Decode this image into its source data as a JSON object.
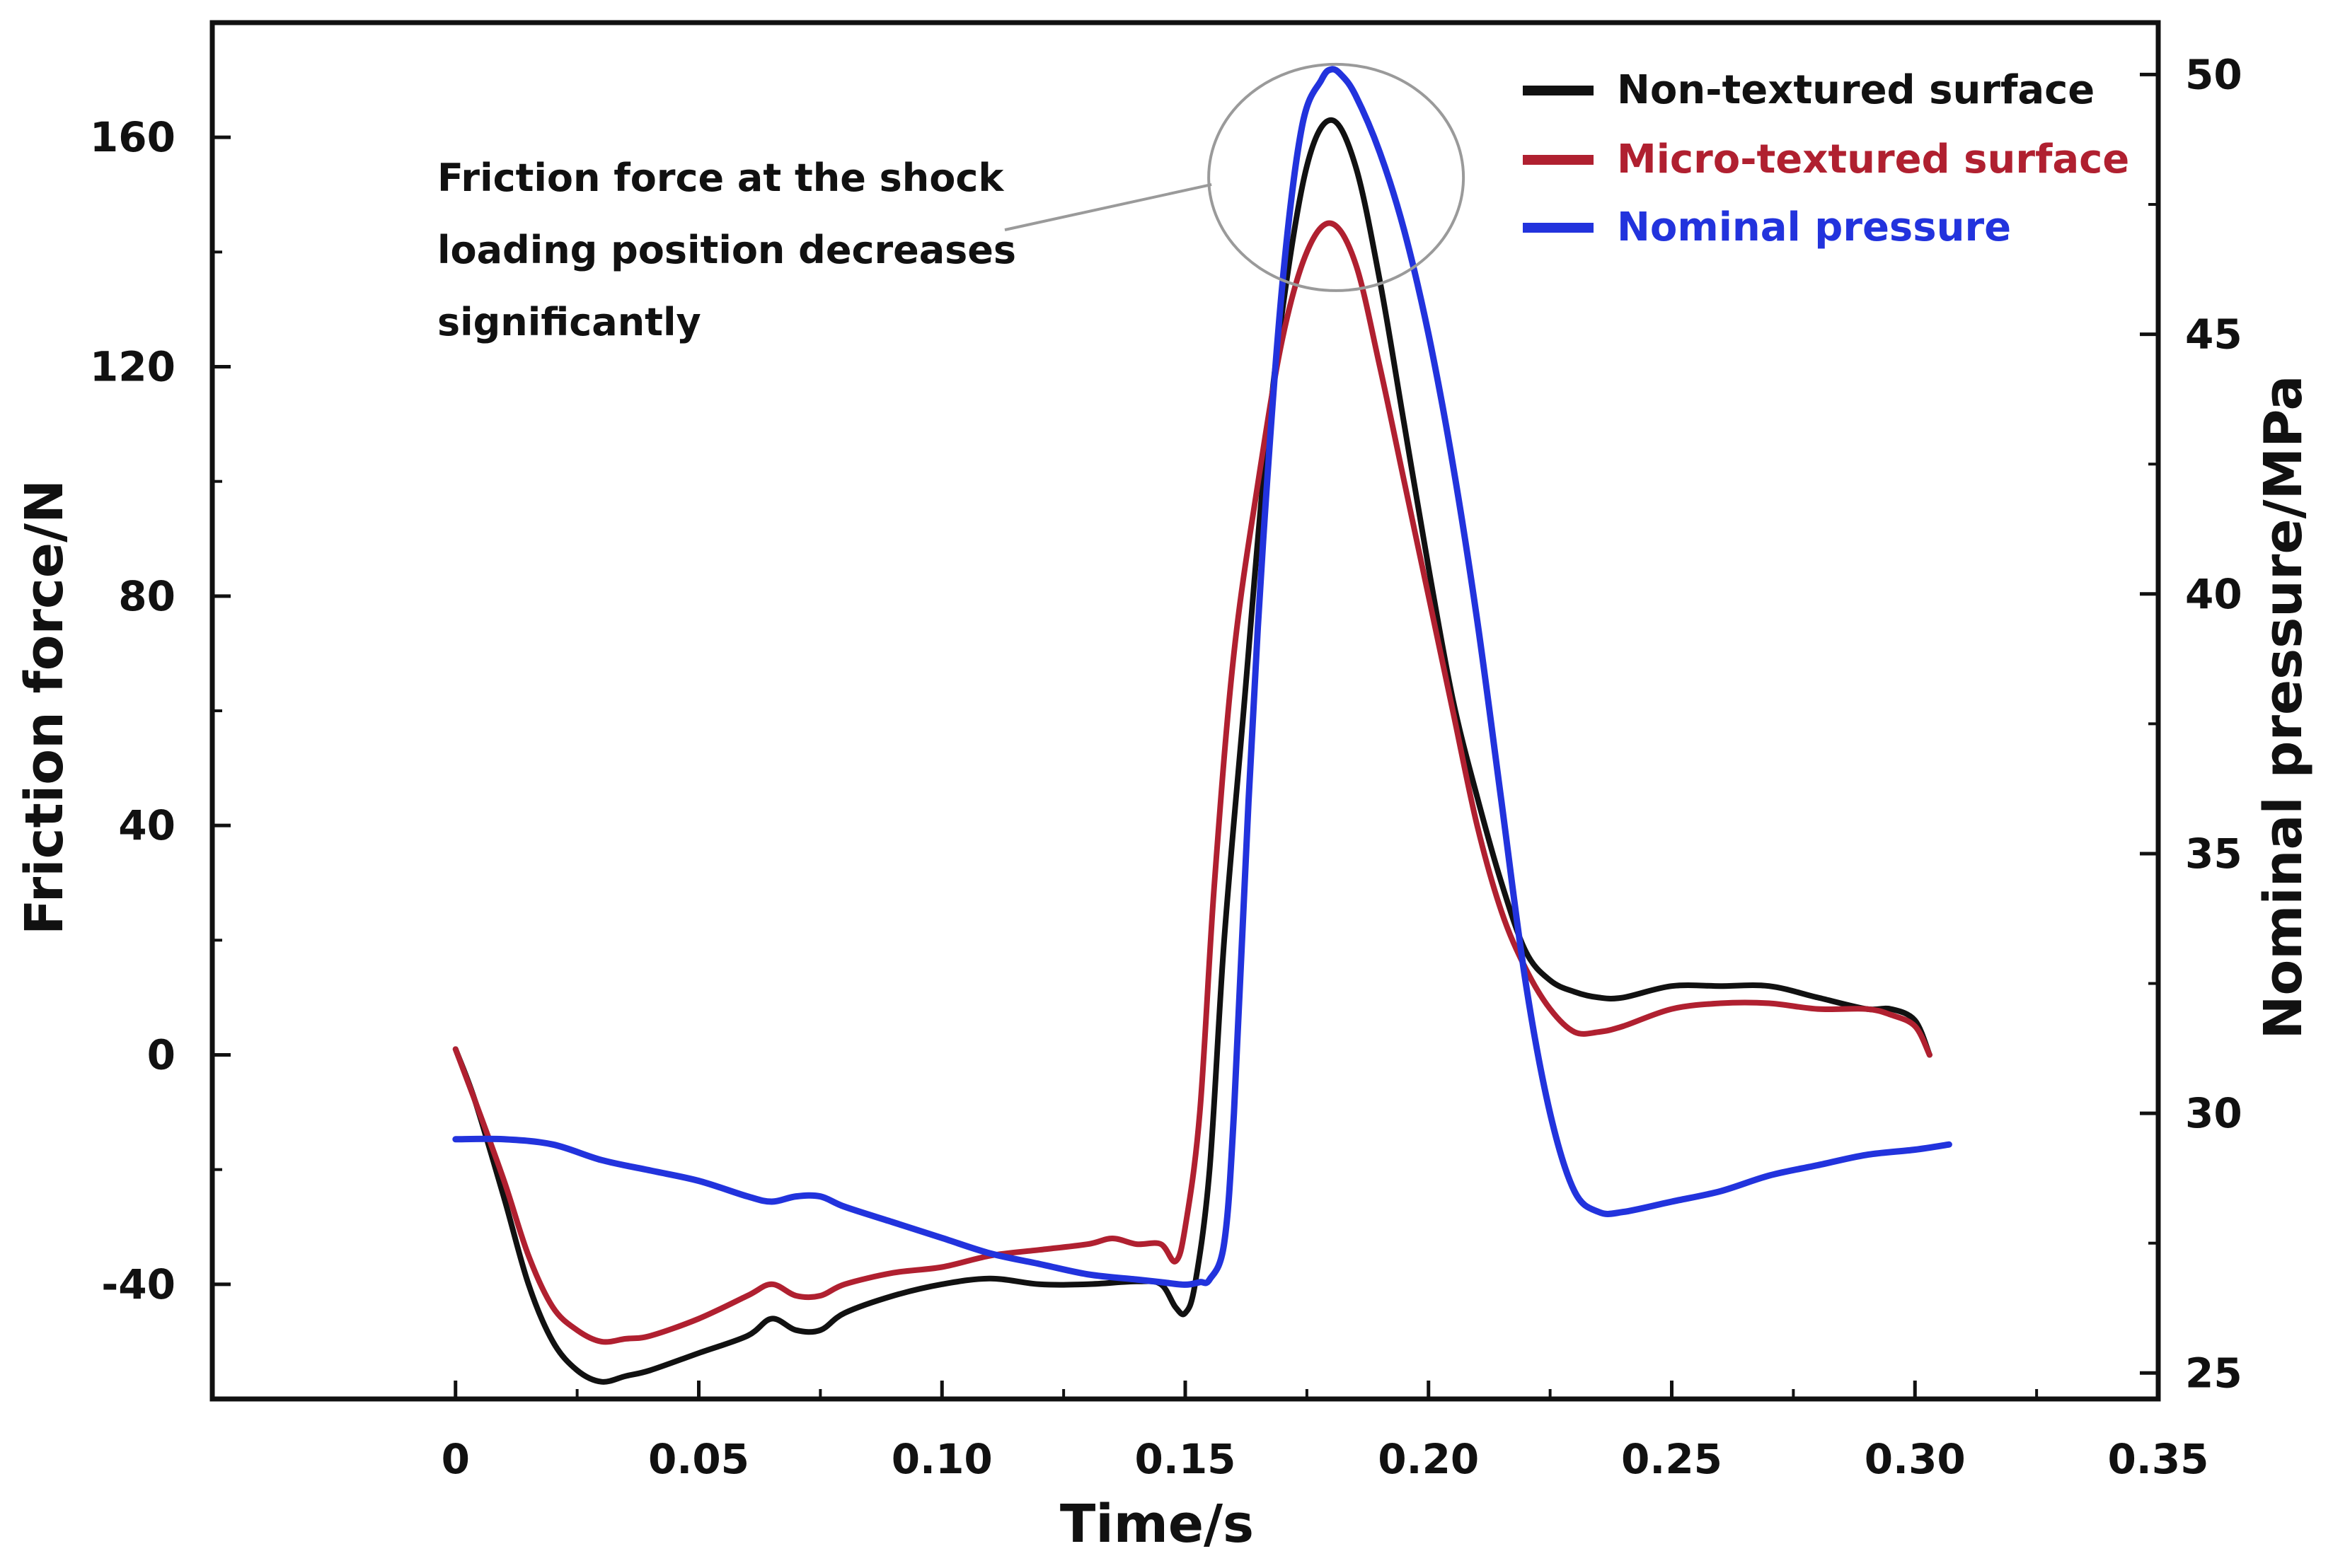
{
  "chart_data": {
    "type": "line",
    "xlabel": "Time/s",
    "ylabel": "Friction force/N",
    "y2label": "Nominal pressure/MPa",
    "xlim": [
      -0.05,
      0.35
    ],
    "ylim": [
      -60,
      180
    ],
    "y2lim": [
      24.5,
      51
    ],
    "x_ticks": [
      0,
      0.05,
      0.1,
      0.15,
      0.2,
      0.25,
      0.3,
      0.35
    ],
    "x_tick_labels": [
      "0",
      "0.05",
      "0.10",
      "0.15",
      "0.20",
      "0.25",
      "0.30",
      "0.35"
    ],
    "y_ticks": [
      -40,
      0,
      40,
      80,
      120,
      160
    ],
    "y_tick_labels": [
      "-40",
      "0",
      "40",
      "80",
      "120",
      "160"
    ],
    "y2_ticks": [
      25,
      30,
      35,
      40,
      45,
      50
    ],
    "y2_tick_labels": [
      "25",
      "30",
      "35",
      "40",
      "45",
      "50"
    ],
    "annotation": {
      "lines": [
        "Friction force at the shock",
        "loading position decreases",
        "significantly"
      ],
      "target": {
        "x": 0.181,
        "y": 153
      }
    },
    "series": [
      {
        "name": "Non-textured surface",
        "color": "#111111",
        "axis": "left",
        "x": [
          0,
          0.004,
          0.01,
          0.015,
          0.02,
          0.025,
          0.03,
          0.035,
          0.04,
          0.05,
          0.06,
          0.065,
          0.07,
          0.075,
          0.08,
          0.09,
          0.1,
          0.11,
          0.12,
          0.13,
          0.14,
          0.145,
          0.148,
          0.15,
          0.152,
          0.155,
          0.158,
          0.162,
          0.166,
          0.17,
          0.175,
          0.18,
          0.185,
          0.19,
          0.195,
          0.2,
          0.205,
          0.21,
          0.215,
          0.22,
          0.225,
          0.23,
          0.235,
          0.24,
          0.25,
          0.26,
          0.27,
          0.28,
          0.29,
          0.295,
          0.3,
          0.303
        ],
        "values": [
          1,
          -8,
          -25,
          -40,
          -50,
          -55,
          -57,
          -56,
          -55,
          -52,
          -49,
          -46,
          -48,
          -48,
          -45,
          -42,
          -40,
          -39,
          -40,
          -40,
          -39.5,
          -40,
          -44,
          -45,
          -40,
          -20,
          20,
          60,
          100,
          130,
          155,
          163,
          155,
          135,
          110,
          85,
          62,
          45,
          30,
          18,
          13,
          11,
          10,
          10,
          12,
          12,
          12,
          10,
          8,
          8,
          6,
          0
        ]
      },
      {
        "name": "Micro-textured surface",
        "color": "#b02030",
        "axis": "left",
        "x": [
          0,
          0.004,
          0.01,
          0.015,
          0.02,
          0.025,
          0.03,
          0.035,
          0.04,
          0.05,
          0.06,
          0.065,
          0.07,
          0.075,
          0.08,
          0.09,
          0.1,
          0.11,
          0.12,
          0.13,
          0.135,
          0.14,
          0.145,
          0.148,
          0.15,
          0.153,
          0.156,
          0.16,
          0.165,
          0.17,
          0.175,
          0.18,
          0.185,
          0.19,
          0.195,
          0.2,
          0.205,
          0.21,
          0.215,
          0.22,
          0.225,
          0.23,
          0.235,
          0.24,
          0.25,
          0.26,
          0.27,
          0.28,
          0.29,
          0.295,
          0.3,
          0.303
        ],
        "values": [
          1,
          -8,
          -22,
          -35,
          -44,
          -48,
          -50,
          -49.5,
          -49,
          -46,
          -42,
          -40,
          -42,
          -42,
          -40,
          -38,
          -37,
          -35,
          -34,
          -33,
          -32,
          -33,
          -33,
          -36,
          -30,
          -10,
          30,
          70,
          100,
          125,
          140,
          145,
          138,
          120,
          100,
          80,
          60,
          40,
          25,
          15,
          8,
          4,
          4,
          5,
          8,
          9,
          9,
          8,
          8,
          7,
          5,
          0
        ]
      },
      {
        "name": "Nominal pressure",
        "color": "#2233dd",
        "axis": "right",
        "x": [
          0,
          0.01,
          0.02,
          0.03,
          0.04,
          0.05,
          0.06,
          0.065,
          0.07,
          0.075,
          0.08,
          0.09,
          0.1,
          0.11,
          0.12,
          0.13,
          0.14,
          0.145,
          0.15,
          0.153,
          0.155,
          0.158,
          0.16,
          0.163,
          0.166,
          0.17,
          0.174,
          0.178,
          0.18,
          0.182,
          0.185,
          0.19,
          0.195,
          0.2,
          0.205,
          0.21,
          0.215,
          0.22,
          0.225,
          0.23,
          0.235,
          0.24,
          0.25,
          0.26,
          0.27,
          0.28,
          0.29,
          0.3,
          0.307
        ],
        "values": [
          29.5,
          29.5,
          29.4,
          29.1,
          28.9,
          28.7,
          28.4,
          28.3,
          28.4,
          28.4,
          28.2,
          27.9,
          27.6,
          27.3,
          27.1,
          26.9,
          26.8,
          26.75,
          26.7,
          26.75,
          26.8,
          27.5,
          30,
          36,
          41,
          46,
          49,
          49.9,
          50.1,
          50,
          49.6,
          48.5,
          47,
          45,
          42.5,
          39.5,
          36,
          32.5,
          30,
          28.5,
          28.1,
          28.1,
          28.3,
          28.5,
          28.8,
          29.0,
          29.2,
          29.3,
          29.4
        ]
      }
    ]
  }
}
